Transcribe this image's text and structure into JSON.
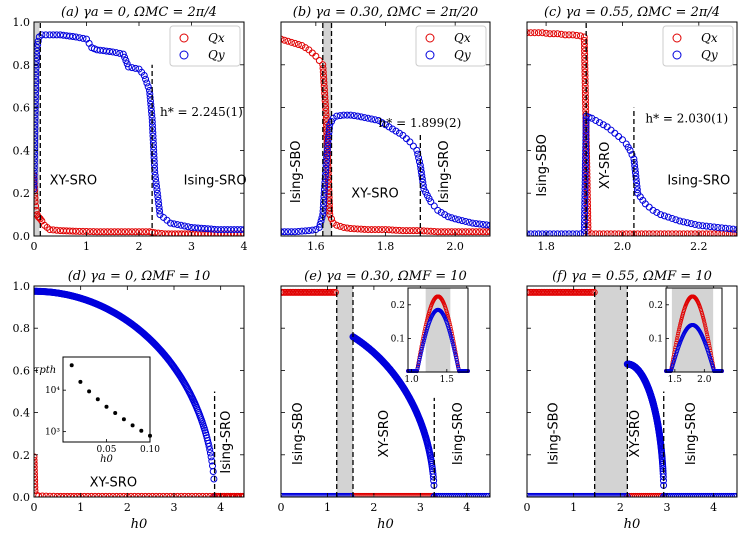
{
  "chart_data": [
    {
      "id": "a",
      "type": "scatter",
      "title": "(a) γa = 0, ΩMC = 2π/4",
      "xlim": [
        0,
        4
      ],
      "ylim": [
        0,
        1
      ],
      "xticks": [
        "0",
        "1",
        "2",
        "3",
        "4"
      ],
      "xtick_values": [
        0,
        1,
        2,
        3,
        4
      ],
      "yticks": [
        "0.0",
        "0.2",
        "0.4",
        "0.6",
        "0.8",
        "1.0"
      ],
      "ytick_values": [
        0,
        0.2,
        0.4,
        0.6,
        0.8,
        1.0
      ],
      "shade": [
        [
          0,
          0.1
        ]
      ],
      "vlines": [
        {
          "x": 0.12,
          "y": [
            0,
            1
          ]
        },
        {
          "x": 2.25,
          "y": [
            0,
            0.8
          ]
        }
      ],
      "region_labels": [
        {
          "text": "XY-SRO",
          "x": 0.75,
          "y": 0.24
        },
        {
          "text": "Ising-SRO",
          "x": 3.45,
          "y": 0.24
        }
      ],
      "annotations": [
        {
          "text": "h* = 2.245(1)",
          "x": 2.4,
          "y": 0.56
        }
      ],
      "legend": [
        {
          "name": "Qx",
          "color": "#e00000"
        },
        {
          "name": "Qy",
          "color": "#0000dd"
        }
      ],
      "series": [
        {
          "name": "Qx",
          "color": "#e00000",
          "x": [
            0.0,
            0.02,
            0.04,
            0.06,
            0.08,
            0.1,
            0.12,
            0.15,
            0.2,
            0.3,
            0.5,
            0.8,
            1.2,
            1.6,
            2.0,
            2.2,
            2.3,
            2.5,
            3.0,
            3.5,
            4.0
          ],
          "y": [
            0.28,
            0.16,
            0.12,
            0.1,
            0.09,
            0.085,
            0.08,
            0.07,
            0.05,
            0.03,
            0.025,
            0.022,
            0.02,
            0.02,
            0.02,
            0.02,
            0.015,
            0.01,
            0.01,
            0.01,
            0.01
          ]
        },
        {
          "name": "Qy",
          "color": "#0000dd",
          "x": [
            0.0,
            0.02,
            0.04,
            0.06,
            0.08,
            0.1,
            0.15,
            0.3,
            0.5,
            0.8,
            1.0,
            1.1,
            1.2,
            1.5,
            1.7,
            1.8,
            2.0,
            2.1,
            2.2,
            2.25,
            2.3,
            2.4,
            2.6,
            3.0,
            3.5,
            4.0
          ],
          "y": [
            0.22,
            0.55,
            0.8,
            0.88,
            0.91,
            0.93,
            0.94,
            0.94,
            0.94,
            0.93,
            0.92,
            0.88,
            0.87,
            0.86,
            0.85,
            0.79,
            0.78,
            0.75,
            0.68,
            0.55,
            0.3,
            0.1,
            0.06,
            0.04,
            0.03,
            0.03
          ]
        }
      ]
    },
    {
      "id": "b",
      "type": "scatter",
      "title": "(b) γa = 0.30, ΩMC = 2π/20",
      "xlim": [
        1.5,
        2.1
      ],
      "ylim": [
        0,
        1
      ],
      "xticks": [
        "1.6",
        "1.8",
        "2.0"
      ],
      "xtick_values": [
        1.6,
        1.8,
        2.0
      ],
      "yticks": [],
      "ytick_values": [
        0,
        0.2,
        0.4,
        0.6,
        0.8,
        1.0
      ],
      "shade": [
        [
          1.62,
          1.645
        ]
      ],
      "vlines": [
        {
          "x": 1.62,
          "y": [
            0,
            1
          ]
        },
        {
          "x": 1.645,
          "y": [
            0,
            1
          ]
        },
        {
          "x": 1.9,
          "y": [
            0,
            0.48
          ]
        }
      ],
      "region_labels": [
        {
          "text": "Ising-SBO",
          "x": 1.555,
          "y": 0.3,
          "rotate": true
        },
        {
          "text": "XY-SRO",
          "x": 1.77,
          "y": 0.18
        },
        {
          "text": "Ising-SRO",
          "x": 1.98,
          "y": 0.3,
          "rotate": true
        }
      ],
      "annotations": [
        {
          "text": "h* = 1.899(2)",
          "x": 1.78,
          "y": 0.51
        }
      ],
      "legend": [
        {
          "name": "Qx",
          "color": "#e00000"
        },
        {
          "name": "Qy",
          "color": "#0000dd"
        }
      ],
      "series": [
        {
          "name": "Qx",
          "color": "#e00000",
          "x": [
            1.5,
            1.52,
            1.54,
            1.56,
            1.58,
            1.6,
            1.61,
            1.62,
            1.63,
            1.64,
            1.65,
            1.66,
            1.68,
            1.7,
            1.75,
            1.8,
            1.85,
            1.9,
            1.95,
            2.0,
            2.05,
            2.1
          ],
          "y": [
            0.92,
            0.91,
            0.9,
            0.89,
            0.87,
            0.84,
            0.82,
            0.8,
            0.55,
            0.1,
            0.06,
            0.05,
            0.04,
            0.035,
            0.03,
            0.03,
            0.025,
            0.025,
            0.02,
            0.02,
            0.02,
            0.02
          ]
        },
        {
          "name": "Qy",
          "color": "#0000dd",
          "x": [
            1.5,
            1.54,
            1.58,
            1.6,
            1.61,
            1.62,
            1.63,
            1.64,
            1.65,
            1.66,
            1.68,
            1.7,
            1.72,
            1.75,
            1.78,
            1.8,
            1.82,
            1.85,
            1.87,
            1.89,
            1.9,
            1.91,
            1.93,
            1.95,
            1.98,
            2.0,
            2.05,
            2.1
          ],
          "y": [
            0.02,
            0.02,
            0.025,
            0.03,
            0.04,
            0.1,
            0.35,
            0.52,
            0.55,
            0.56,
            0.565,
            0.565,
            0.56,
            0.55,
            0.54,
            0.52,
            0.5,
            0.47,
            0.44,
            0.4,
            0.33,
            0.22,
            0.16,
            0.12,
            0.09,
            0.08,
            0.06,
            0.05
          ]
        }
      ]
    },
    {
      "id": "c",
      "type": "scatter",
      "title": "(c) γa = 0.55, ΩMC = 2π/4",
      "xlim": [
        1.75,
        2.3
      ],
      "ylim": [
        0,
        1
      ],
      "xticks": [
        "1.8",
        "2.0",
        "2.2"
      ],
      "xtick_values": [
        1.8,
        2.0,
        2.2
      ],
      "yticks": [],
      "ytick_values": [
        0,
        0.2,
        0.4,
        0.6,
        0.8,
        1.0
      ],
      "shade": [],
      "vlines": [
        {
          "x": 1.905,
          "y": [
            0,
            1
          ]
        },
        {
          "x": 2.03,
          "y": [
            0,
            0.6
          ]
        }
      ],
      "region_labels": [
        {
          "text": "Ising-SBO",
          "x": 1.8,
          "y": 0.33,
          "rotate": true
        },
        {
          "text": "XY-SRO",
          "x": 1.965,
          "y": 0.33,
          "rotate": true
        },
        {
          "text": "Ising-SRO",
          "x": 2.2,
          "y": 0.24
        }
      ],
      "annotations": [
        {
          "text": "h* = 2.030(1)",
          "x": 2.06,
          "y": 0.53
        }
      ],
      "legend": [
        {
          "name": "Qx",
          "color": "#e00000"
        },
        {
          "name": "Qy",
          "color": "#0000dd"
        }
      ],
      "series": [
        {
          "name": "Qx",
          "color": "#e00000",
          "x": [
            1.75,
            1.77,
            1.79,
            1.81,
            1.83,
            1.85,
            1.87,
            1.89,
            1.9,
            1.91,
            1.95,
            2.0,
            2.05,
            2.1,
            2.15,
            2.2,
            2.25,
            2.3
          ],
          "y": [
            0.95,
            0.95,
            0.95,
            0.945,
            0.945,
            0.94,
            0.94,
            0.935,
            0.93,
            0.01,
            0.01,
            0.01,
            0.01,
            0.01,
            0.01,
            0.01,
            0.01,
            0.01
          ]
        },
        {
          "name": "Qy",
          "color": "#0000dd",
          "x": [
            1.75,
            1.8,
            1.85,
            1.9,
            1.905,
            1.92,
            1.94,
            1.96,
            1.98,
            2.0,
            2.01,
            2.02,
            2.03,
            2.04,
            2.06,
            2.08,
            2.1,
            2.15,
            2.2,
            2.25,
            2.3
          ],
          "y": [
            0.01,
            0.01,
            0.01,
            0.01,
            0.56,
            0.55,
            0.53,
            0.51,
            0.48,
            0.45,
            0.43,
            0.4,
            0.36,
            0.2,
            0.15,
            0.12,
            0.1,
            0.07,
            0.05,
            0.04,
            0.03
          ]
        }
      ]
    },
    {
      "id": "d",
      "type": "scatter",
      "title": "(d) γa = 0, ΩMF = 10",
      "xlim": [
        0,
        4.5
      ],
      "ylim": [
        0,
        1
      ],
      "xlabel": "h0",
      "xticks": [
        "0",
        "1",
        "2",
        "3",
        "4"
      ],
      "xtick_values": [
        0,
        1,
        2,
        3,
        4
      ],
      "yticks": [
        "0.0",
        "0.2",
        "0.4",
        "0.6",
        "0.8",
        "1.0"
      ],
      "ytick_values": [
        0,
        0.2,
        0.4,
        0.6,
        0.8,
        1.0
      ],
      "shade": [],
      "vlines": [
        {
          "x": 3.87,
          "y": [
            0,
            0.5
          ]
        }
      ],
      "region_labels": [
        {
          "text": "XY-SRO",
          "x": 1.7,
          "y": 0.05
        },
        {
          "text": "Ising-SRO",
          "x": 4.2,
          "y": 0.26,
          "rotate": true
        }
      ],
      "annotations": [],
      "h_star": 3.87,
      "ellipse": {
        "name": "Qy",
        "color": "#0000dd",
        "amp": 0.975,
        "hc": 3.87,
        "offset": 0
      },
      "series": [
        {
          "name": "Qx",
          "color": "#e00000",
          "x": [
            0.0,
            0.02,
            0.05,
            0.1,
            0.5,
            1.0,
            2.0,
            3.0,
            4.0,
            4.5
          ],
          "y": [
            0.19,
            0.03,
            0.01,
            0.005,
            0.003,
            0.003,
            0.003,
            0.003,
            0.003,
            0.003
          ]
        }
      ],
      "inset": {
        "ylabel": "τpth",
        "xlabel": "h0",
        "xticks": [
          "0.05",
          "0.10"
        ],
        "xtick_values": [
          0.05,
          0.1
        ],
        "yticks": [
          "10³",
          "10⁴"
        ],
        "ytick_values": [
          3,
          4
        ],
        "xlim": [
          0,
          0.1
        ],
        "ylim": [
          2.75,
          4.8
        ],
        "x": [
          0.01,
          0.02,
          0.03,
          0.04,
          0.05,
          0.06,
          0.07,
          0.08,
          0.09,
          0.1
        ],
        "logy": [
          4.6,
          4.2,
          3.97,
          3.78,
          3.6,
          3.45,
          3.3,
          3.15,
          3.02,
          2.9
        ]
      }
    },
    {
      "id": "e",
      "type": "scatter",
      "title": "(e) γa = 0.30, ΩMF = 10",
      "xlim": [
        0,
        4.5
      ],
      "ylim": [
        0,
        1
      ],
      "xlabel": "h0",
      "xticks": [
        "0",
        "1",
        "2",
        "3",
        "4"
      ],
      "xtick_values": [
        0,
        1,
        2,
        3,
        4
      ],
      "yticks": [],
      "ytick_values": [
        0,
        0.2,
        0.4,
        0.6,
        0.8,
        1.0
      ],
      "shade": [
        [
          1.2,
          1.55
        ]
      ],
      "vlines": [
        {
          "x": 1.2,
          "y": [
            0,
            1
          ]
        },
        {
          "x": 1.55,
          "y": [
            0,
            1
          ]
        },
        {
          "x": 3.3,
          "y": [
            0,
            0.47
          ]
        }
      ],
      "region_labels": [
        {
          "text": "Ising-SBO",
          "x": 0.45,
          "y": 0.3,
          "rotate": true
        },
        {
          "text": "XY-SRO",
          "x": 2.3,
          "y": 0.3,
          "rotate": true
        },
        {
          "text": "Ising-SRO",
          "x": 3.9,
          "y": 0.3,
          "rotate": true
        }
      ],
      "annotations": [],
      "flat_red": {
        "color": "#e00000",
        "x0": 0,
        "x1": 1.2,
        "y": 0.97
      },
      "ellipse": {
        "name": "Qy",
        "color": "#0000dd",
        "amp": 0.86,
        "hc": 3.3,
        "start": 1.55,
        "scale_ref": 0
      },
      "inset": {
        "xticks": [
          "1.0",
          "1.5"
        ],
        "xtick_values": [
          1.0,
          1.5
        ],
        "yticks": [
          "0.1",
          "0.2"
        ],
        "ytick_values": [
          0.1,
          0.2
        ],
        "xlim": [
          0.95,
          1.8
        ],
        "ylim": [
          0,
          0.25
        ],
        "shade": [
          1.2,
          1.55
        ],
        "bumps": [
          {
            "color": "#e00000",
            "center": 1.375,
            "halfwidth": 0.3,
            "peak": 0.225
          },
          {
            "color": "#0000dd",
            "center": 1.375,
            "halfwidth": 0.3,
            "peak": 0.185
          }
        ]
      }
    },
    {
      "id": "f",
      "type": "scatter",
      "title": "(f) γa = 0.55, ΩMF = 10",
      "xlim": [
        0,
        4.5
      ],
      "ylim": [
        0,
        1
      ],
      "xlabel": "h0",
      "xticks": [
        "0",
        "1",
        "2",
        "3",
        "4"
      ],
      "xtick_values": [
        0,
        1,
        2,
        3,
        4
      ],
      "yticks": [],
      "ytick_values": [
        0,
        0.2,
        0.4,
        0.6,
        0.8,
        1.0
      ],
      "shade": [
        [
          1.45,
          2.15
        ]
      ],
      "vlines": [
        {
          "x": 1.45,
          "y": [
            0,
            1
          ]
        },
        {
          "x": 2.15,
          "y": [
            0,
            1
          ]
        },
        {
          "x": 2.93,
          "y": [
            0,
            0.5
          ]
        }
      ],
      "region_labels": [
        {
          "text": "Ising-SBO",
          "x": 0.65,
          "y": 0.3,
          "rotate": true
        },
        {
          "text": "XY-SRO",
          "x": 2.4,
          "y": 0.3,
          "rotate": true
        },
        {
          "text": "Ising-SRO",
          "x": 3.6,
          "y": 0.3,
          "rotate": true
        }
      ],
      "annotations": [],
      "flat_red": {
        "color": "#e00000",
        "x0": 0,
        "x1": 1.45,
        "y": 0.97
      },
      "ellipse": {
        "name": "Qy",
        "color": "#0000dd",
        "amp": 0.63,
        "hc": 2.93,
        "start": 2.15,
        "scale_ref": 2.15
      },
      "inset": {
        "xticks": [
          "1.5",
          "2.0"
        ],
        "xtick_values": [
          1.5,
          2.0
        ],
        "yticks": [
          "0.1",
          "0.2"
        ],
        "ytick_values": [
          0.1,
          0.2
        ],
        "xlim": [
          1.35,
          2.3
        ],
        "ylim": [
          0,
          0.25
        ],
        "shade": [
          1.45,
          2.15
        ],
        "bumps": [
          {
            "color": "#e00000",
            "center": 1.8,
            "halfwidth": 0.37,
            "peak": 0.225
          },
          {
            "color": "#0000dd",
            "center": 1.8,
            "halfwidth": 0.37,
            "peak": 0.14
          }
        ]
      }
    }
  ]
}
